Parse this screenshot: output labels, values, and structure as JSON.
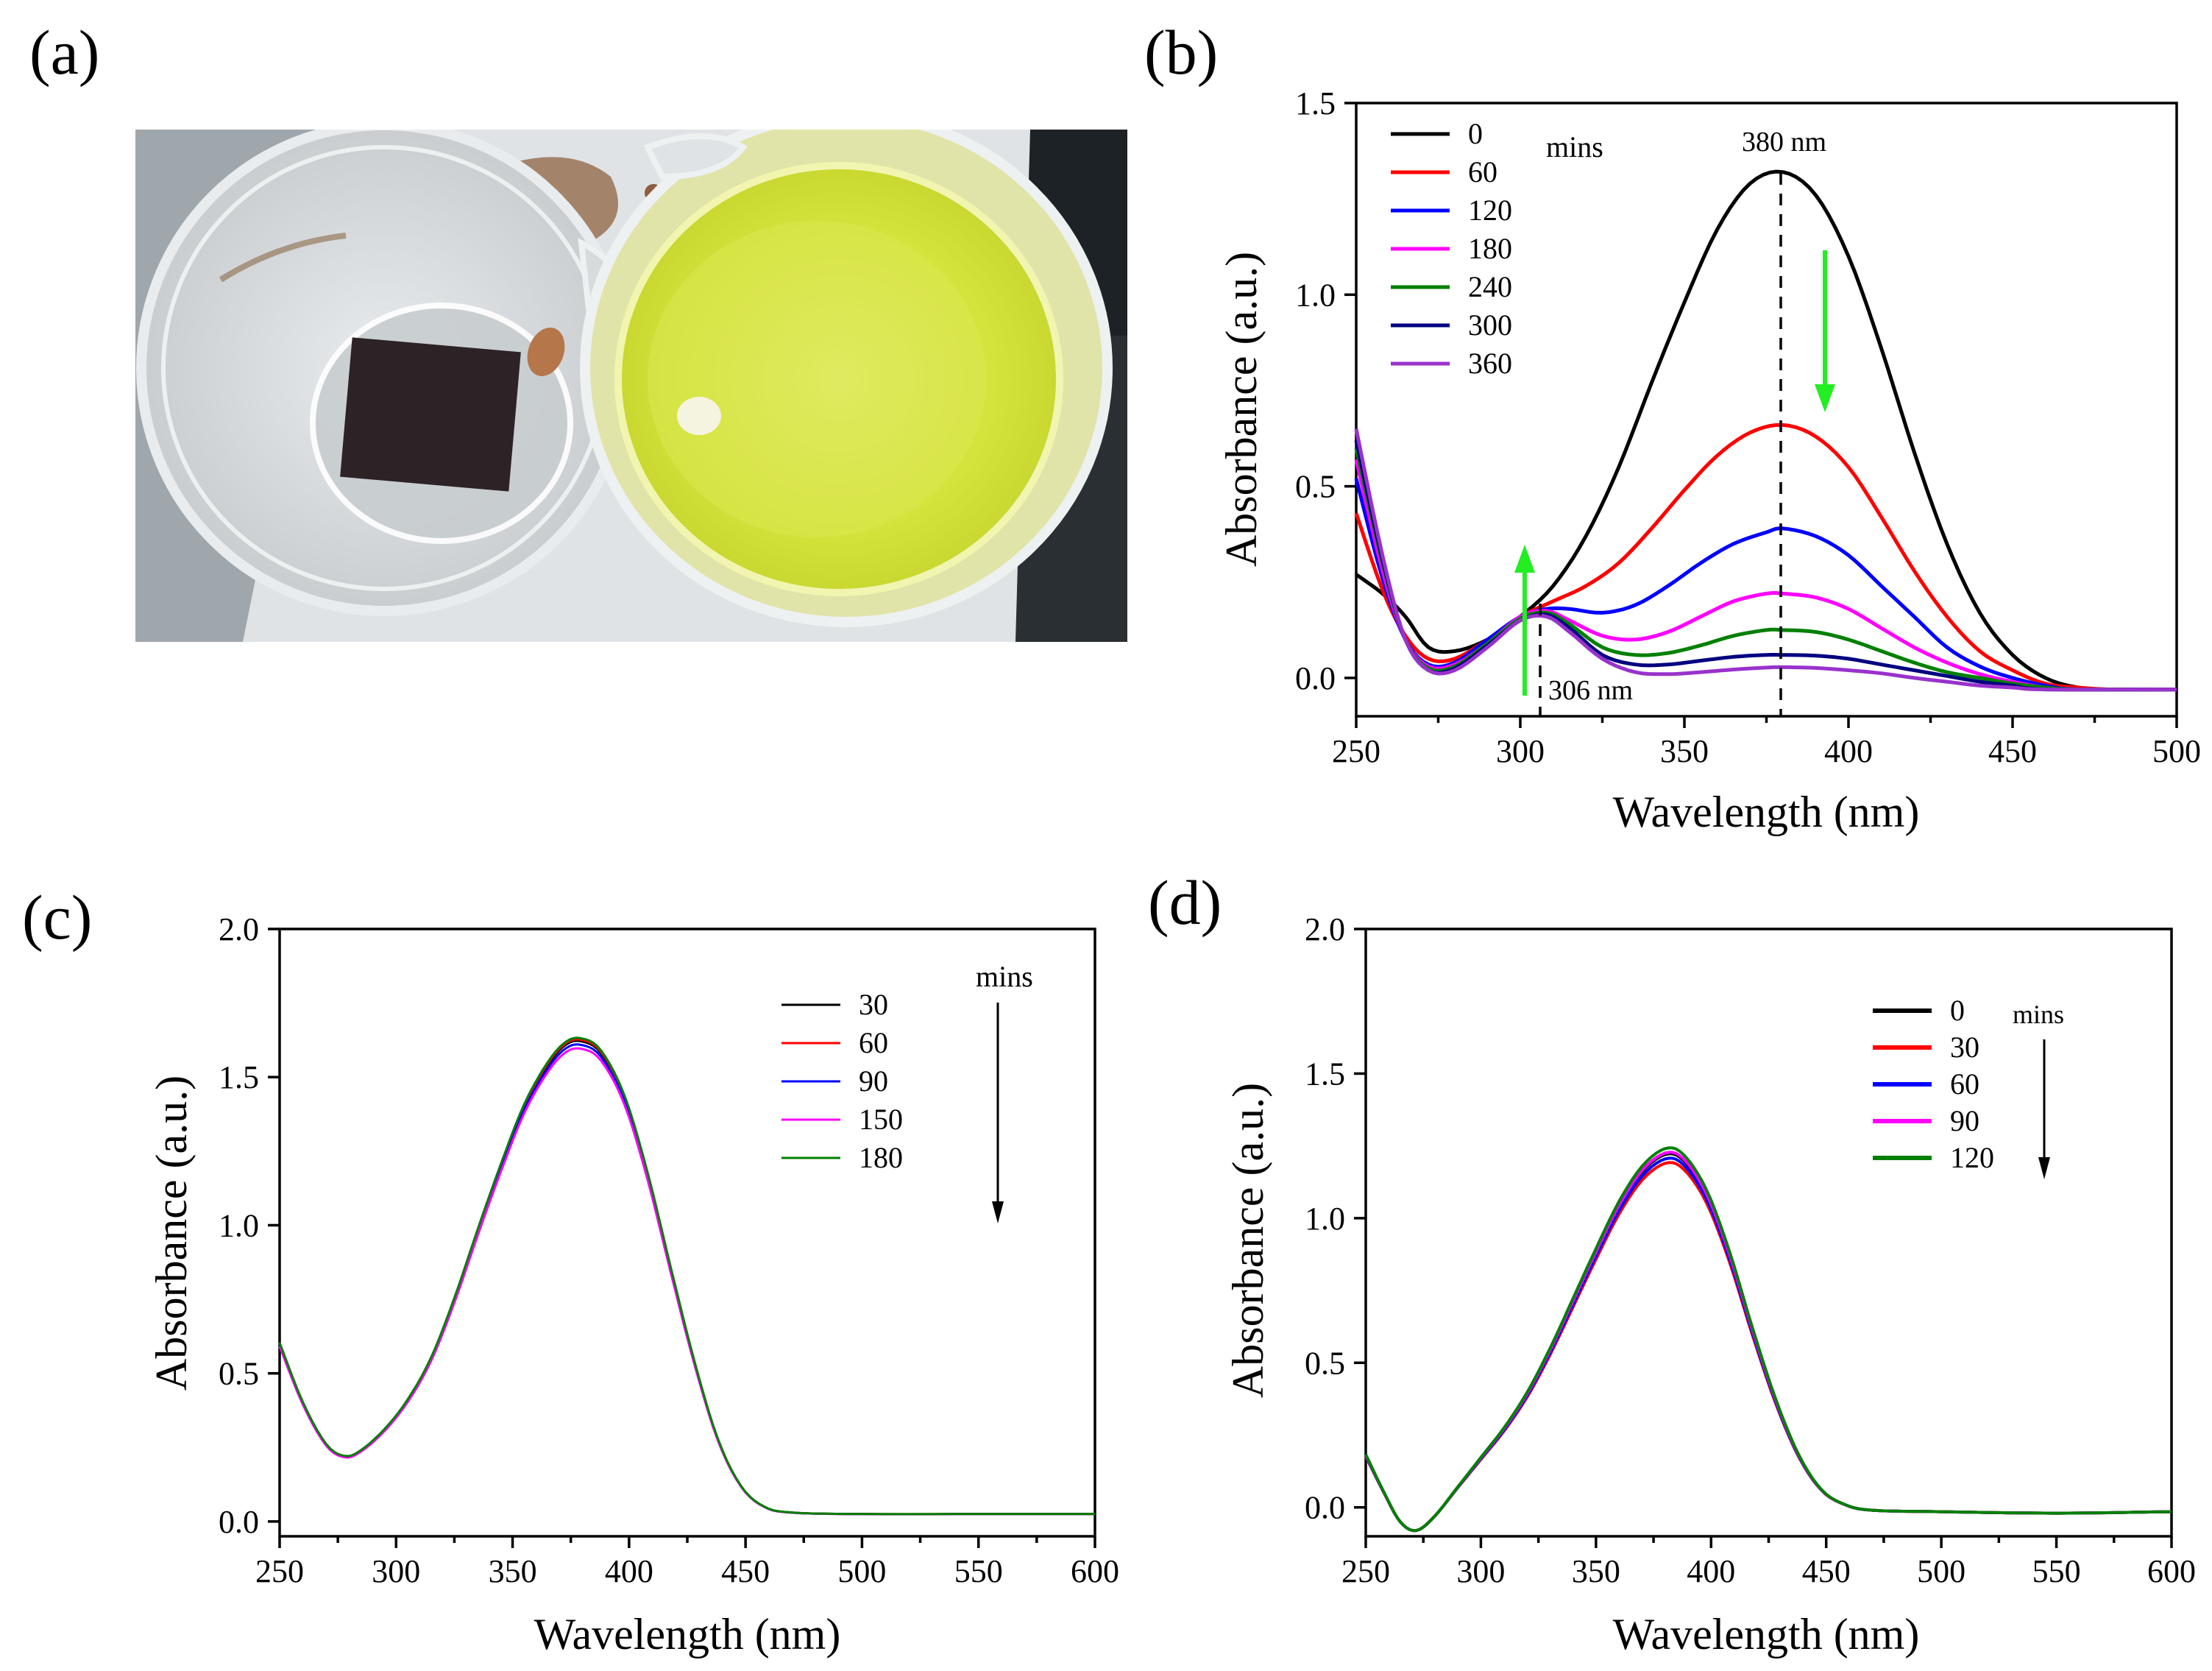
{
  "panel_labels": {
    "a": "(a)",
    "b": "(b)",
    "c": "(c)",
    "d": "(d)"
  },
  "photo": {
    "caption": ""
  },
  "chart_data": [
    {
      "id": "b",
      "type": "line",
      "xlabel": "Wavelength (nm)",
      "ylabel": "Absorbance (a.u.)",
      "xlim": [
        250,
        500
      ],
      "ylim": [
        -0.1,
        1.5
      ],
      "xticks": [
        250,
        300,
        350,
        400,
        450,
        500
      ],
      "yticks": [
        0.0,
        0.5,
        1.0,
        1.5
      ],
      "legend_title": "mins",
      "legend_position": "top-left",
      "annotations": {
        "peak_label": "380 nm",
        "peak_x": 380,
        "iso_label": "306 nm",
        "iso_x": 306
      },
      "series": [
        {
          "name": "0",
          "color": "#000000",
          "points": [
            [
              250,
              0.27
            ],
            [
              258,
              0.22
            ],
            [
              265,
              0.16
            ],
            [
              272,
              0.08
            ],
            [
              280,
              0.07
            ],
            [
              290,
              0.1
            ],
            [
              300,
              0.16
            ],
            [
              310,
              0.24
            ],
            [
              320,
              0.37
            ],
            [
              330,
              0.55
            ],
            [
              340,
              0.77
            ],
            [
              350,
              0.98
            ],
            [
              360,
              1.17
            ],
            [
              370,
              1.29
            ],
            [
              380,
              1.32
            ],
            [
              390,
              1.26
            ],
            [
              400,
              1.1
            ],
            [
              410,
              0.86
            ],
            [
              420,
              0.59
            ],
            [
              430,
              0.35
            ],
            [
              440,
              0.17
            ],
            [
              450,
              0.06
            ],
            [
              460,
              0.0
            ],
            [
              470,
              -0.025
            ],
            [
              480,
              -0.03
            ],
            [
              500,
              -0.03
            ]
          ]
        },
        {
          "name": "60",
          "color": "#ff0000",
          "points": [
            [
              250,
              0.43
            ],
            [
              258,
              0.23
            ],
            [
              265,
              0.11
            ],
            [
              272,
              0.05
            ],
            [
              280,
              0.05
            ],
            [
              290,
              0.1
            ],
            [
              300,
              0.16
            ],
            [
              310,
              0.2
            ],
            [
              320,
              0.24
            ],
            [
              330,
              0.3
            ],
            [
              340,
              0.39
            ],
            [
              350,
              0.49
            ],
            [
              360,
              0.58
            ],
            [
              370,
              0.64
            ],
            [
              380,
              0.66
            ],
            [
              390,
              0.63
            ],
            [
              400,
              0.55
            ],
            [
              410,
              0.42
            ],
            [
              420,
              0.28
            ],
            [
              430,
              0.16
            ],
            [
              440,
              0.07
            ],
            [
              450,
              0.02
            ],
            [
              460,
              -0.015
            ],
            [
              470,
              -0.025
            ],
            [
              480,
              -0.03
            ],
            [
              500,
              -0.03
            ]
          ]
        },
        {
          "name": "120",
          "color": "#0000ff",
          "points": [
            [
              250,
              0.52
            ],
            [
              258,
              0.26
            ],
            [
              265,
              0.1
            ],
            [
              272,
              0.035
            ],
            [
              280,
              0.04
            ],
            [
              290,
              0.1
            ],
            [
              300,
              0.16
            ],
            [
              308,
              0.18
            ],
            [
              315,
              0.18
            ],
            [
              325,
              0.17
            ],
            [
              335,
              0.19
            ],
            [
              345,
              0.24
            ],
            [
              355,
              0.3
            ],
            [
              365,
              0.35
            ],
            [
              375,
              0.38
            ],
            [
              380,
              0.39
            ],
            [
              390,
              0.37
            ],
            [
              400,
              0.32
            ],
            [
              410,
              0.24
            ],
            [
              420,
              0.16
            ],
            [
              430,
              0.08
            ],
            [
              440,
              0.03
            ],
            [
              450,
              0.0
            ],
            [
              460,
              -0.02
            ],
            [
              470,
              -0.03
            ],
            [
              500,
              -0.03
            ]
          ]
        },
        {
          "name": "180",
          "color": "#ff00ff",
          "points": [
            [
              250,
              0.57
            ],
            [
              258,
              0.28
            ],
            [
              265,
              0.1
            ],
            [
              272,
              0.03
            ],
            [
              280,
              0.035
            ],
            [
              290,
              0.09
            ],
            [
              300,
              0.16
            ],
            [
              308,
              0.175
            ],
            [
              315,
              0.15
            ],
            [
              325,
              0.11
            ],
            [
              335,
              0.1
            ],
            [
              345,
              0.12
            ],
            [
              355,
              0.16
            ],
            [
              365,
              0.2
            ],
            [
              375,
              0.22
            ],
            [
              380,
              0.22
            ],
            [
              390,
              0.21
            ],
            [
              400,
              0.18
            ],
            [
              410,
              0.13
            ],
            [
              420,
              0.08
            ],
            [
              430,
              0.04
            ],
            [
              440,
              0.01
            ],
            [
              450,
              -0.01
            ],
            [
              460,
              -0.025
            ],
            [
              470,
              -0.03
            ],
            [
              500,
              -0.03
            ]
          ]
        },
        {
          "name": "240",
          "color": "#008000",
          "points": [
            [
              250,
              0.6
            ],
            [
              258,
              0.3
            ],
            [
              265,
              0.1
            ],
            [
              272,
              0.025
            ],
            [
              280,
              0.03
            ],
            [
              290,
              0.09
            ],
            [
              300,
              0.155
            ],
            [
              308,
              0.17
            ],
            [
              315,
              0.14
            ],
            [
              325,
              0.08
            ],
            [
              335,
              0.06
            ],
            [
              345,
              0.065
            ],
            [
              355,
              0.085
            ],
            [
              365,
              0.11
            ],
            [
              375,
              0.125
            ],
            [
              380,
              0.125
            ],
            [
              390,
              0.12
            ],
            [
              400,
              0.1
            ],
            [
              410,
              0.07
            ],
            [
              420,
              0.04
            ],
            [
              430,
              0.015
            ],
            [
              440,
              0.0
            ],
            [
              450,
              -0.015
            ],
            [
              460,
              -0.025
            ],
            [
              470,
              -0.03
            ],
            [
              500,
              -0.03
            ]
          ]
        },
        {
          "name": "300",
          "color": "#000080",
          "points": [
            [
              250,
              0.62
            ],
            [
              258,
              0.31
            ],
            [
              265,
              0.1
            ],
            [
              272,
              0.02
            ],
            [
              280,
              0.025
            ],
            [
              290,
              0.085
            ],
            [
              300,
              0.15
            ],
            [
              308,
              0.165
            ],
            [
              315,
              0.13
            ],
            [
              325,
              0.06
            ],
            [
              335,
              0.035
            ],
            [
              345,
              0.035
            ],
            [
              355,
              0.045
            ],
            [
              365,
              0.055
            ],
            [
              375,
              0.06
            ],
            [
              380,
              0.06
            ],
            [
              390,
              0.058
            ],
            [
              400,
              0.05
            ],
            [
              410,
              0.035
            ],
            [
              420,
              0.02
            ],
            [
              430,
              0.005
            ],
            [
              440,
              -0.01
            ],
            [
              450,
              -0.02
            ],
            [
              460,
              -0.03
            ],
            [
              500,
              -0.03
            ]
          ]
        },
        {
          "name": "360",
          "color": "#9932cc",
          "points": [
            [
              250,
              0.65
            ],
            [
              258,
              0.32
            ],
            [
              265,
              0.1
            ],
            [
              272,
              0.02
            ],
            [
              280,
              0.02
            ],
            [
              290,
              0.08
            ],
            [
              300,
              0.15
            ],
            [
              308,
              0.16
            ],
            [
              315,
              0.12
            ],
            [
              325,
              0.05
            ],
            [
              335,
              0.015
            ],
            [
              345,
              0.01
            ],
            [
              355,
              0.015
            ],
            [
              365,
              0.022
            ],
            [
              375,
              0.027
            ],
            [
              380,
              0.028
            ],
            [
              390,
              0.026
            ],
            [
              400,
              0.02
            ],
            [
              410,
              0.012
            ],
            [
              420,
              0.0
            ],
            [
              430,
              -0.01
            ],
            [
              440,
              -0.02
            ],
            [
              450,
              -0.025
            ],
            [
              460,
              -0.03
            ],
            [
              500,
              -0.03
            ]
          ]
        }
      ]
    },
    {
      "id": "c",
      "type": "line",
      "xlabel": "Wavelength (nm)",
      "ylabel": "Absorbance (a.u.)",
      "xlim": [
        250,
        600
      ],
      "ylim": [
        -0.05,
        2.0
      ],
      "xticks": [
        250,
        300,
        350,
        400,
        450,
        500,
        550,
        600
      ],
      "yticks": [
        0.0,
        0.5,
        1.0,
        1.5,
        2.0
      ],
      "legend_title": "mins",
      "legend_position": "top-right",
      "series": [
        {
          "name": "30",
          "color": "#000000",
          "offset": 0.0
        },
        {
          "name": "60",
          "color": "#ff0000",
          "offset": 0.005
        },
        {
          "name": "90",
          "color": "#0000ff",
          "offset": -0.012
        },
        {
          "name": "150",
          "color": "#ff00ff",
          "offset": -0.025
        },
        {
          "name": "180",
          "color": "#008000",
          "offset": 0.01
        }
      ],
      "base_points": [
        [
          250,
          0.6
        ],
        [
          260,
          0.4
        ],
        [
          270,
          0.26
        ],
        [
          278,
          0.22
        ],
        [
          285,
          0.24
        ],
        [
          295,
          0.31
        ],
        [
          305,
          0.41
        ],
        [
          315,
          0.55
        ],
        [
          325,
          0.75
        ],
        [
          335,
          0.98
        ],
        [
          345,
          1.2
        ],
        [
          355,
          1.4
        ],
        [
          365,
          1.54
        ],
        [
          373,
          1.61
        ],
        [
          380,
          1.62
        ],
        [
          388,
          1.58
        ],
        [
          398,
          1.43
        ],
        [
          408,
          1.17
        ],
        [
          418,
          0.85
        ],
        [
          428,
          0.54
        ],
        [
          438,
          0.28
        ],
        [
          448,
          0.12
        ],
        [
          458,
          0.05
        ],
        [
          470,
          0.03
        ],
        [
          500,
          0.025
        ],
        [
          550,
          0.025
        ],
        [
          600,
          0.025
        ]
      ]
    },
    {
      "id": "d",
      "type": "line",
      "xlabel": "Wavelength (nm)",
      "ylabel": "Absorbance (a.u.)",
      "xlim": [
        250,
        600
      ],
      "ylim": [
        -0.1,
        2.0
      ],
      "xticks": [
        250,
        300,
        350,
        400,
        450,
        500,
        550,
        600
      ],
      "yticks": [
        0.0,
        0.5,
        1.0,
        1.5,
        2.0
      ],
      "legend_title": "mins",
      "legend_position": "top-right",
      "series": [
        {
          "name": "0",
          "color": "#000000",
          "offset": 0.0
        },
        {
          "name": "30",
          "color": "#ff0000",
          "offset": -0.03
        },
        {
          "name": "60",
          "color": "#0000ff",
          "offset": -0.015
        },
        {
          "name": "90",
          "color": "#ff00ff",
          "offset": 0.005
        },
        {
          "name": "120",
          "color": "#008000",
          "offset": 0.02
        }
      ],
      "base_points": [
        [
          250,
          0.18
        ],
        [
          258,
          0.05
        ],
        [
          265,
          -0.05
        ],
        [
          272,
          -0.08
        ],
        [
          280,
          -0.03
        ],
        [
          290,
          0.07
        ],
        [
          300,
          0.17
        ],
        [
          310,
          0.27
        ],
        [
          320,
          0.39
        ],
        [
          330,
          0.54
        ],
        [
          340,
          0.71
        ],
        [
          350,
          0.88
        ],
        [
          360,
          1.04
        ],
        [
          370,
          1.16
        ],
        [
          380,
          1.22
        ],
        [
          388,
          1.2
        ],
        [
          398,
          1.08
        ],
        [
          408,
          0.87
        ],
        [
          418,
          0.61
        ],
        [
          428,
          0.37
        ],
        [
          438,
          0.18
        ],
        [
          448,
          0.06
        ],
        [
          458,
          0.01
        ],
        [
          470,
          -0.01
        ],
        [
          500,
          -0.015
        ],
        [
          550,
          -0.02
        ],
        [
          600,
          -0.015
        ]
      ]
    }
  ]
}
